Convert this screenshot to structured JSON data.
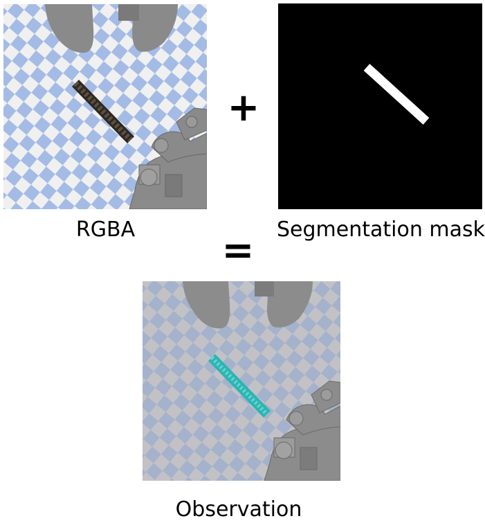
{
  "captions": {
    "rgba": "RGBA",
    "mask": "Segmentation mask",
    "observation": "Observation"
  },
  "operators": {
    "plus": "+",
    "equals": "="
  },
  "colors": {
    "checker_light": "#f0f0f0",
    "checker_blue": "#a4bbe6",
    "robot_gray": "#8a8a8a",
    "stick_dark": "#4a4035",
    "mask_background": "#000000",
    "mask_foreground": "#ffffff",
    "observation_stick": "#3bbfbf"
  }
}
